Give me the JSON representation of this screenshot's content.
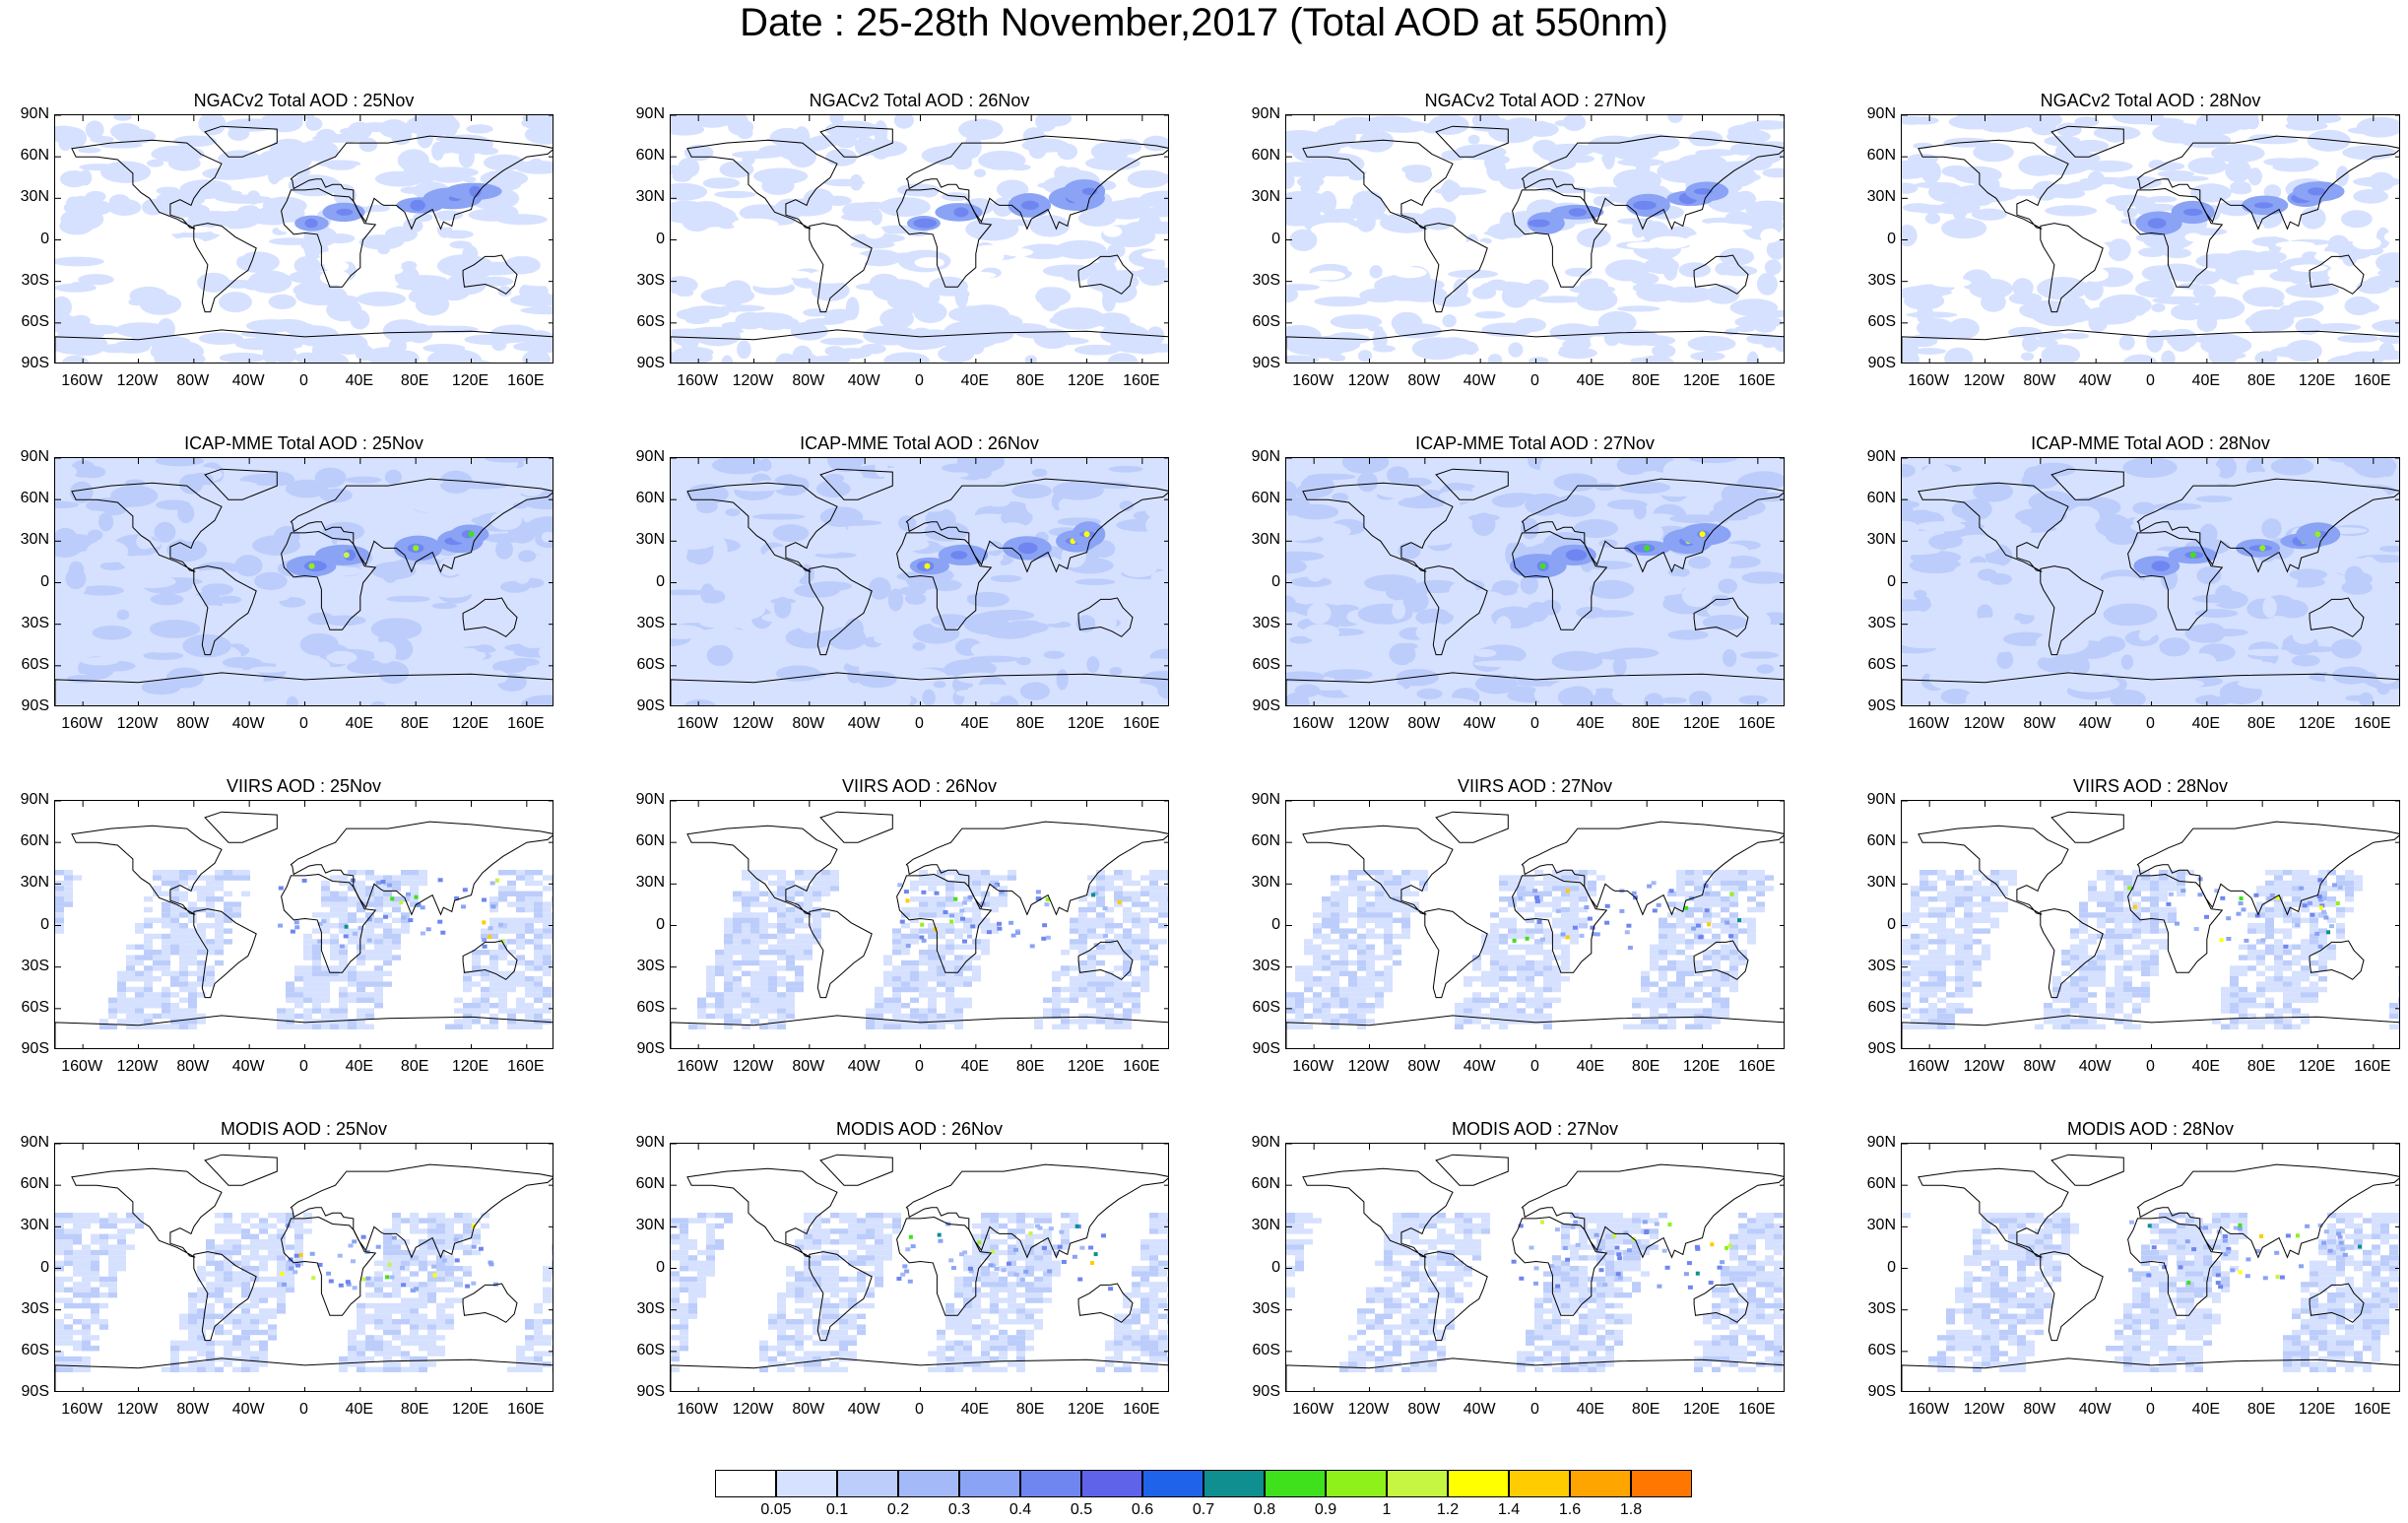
{
  "title": "Date : 25-28th November,2017 (Total AOD at 550nm)",
  "panels": [
    {
      "title": "NGACv2 Total AOD : 25Nov",
      "product": "NGACv2",
      "day": "25Nov"
    },
    {
      "title": "NGACv2 Total AOD : 26Nov",
      "product": "NGACv2",
      "day": "26Nov"
    },
    {
      "title": "NGACv2 Total AOD : 27Nov",
      "product": "NGACv2",
      "day": "27Nov"
    },
    {
      "title": "NGACv2 Total AOD : 28Nov",
      "product": "NGACv2",
      "day": "28Nov"
    },
    {
      "title": "ICAP-MME Total AOD : 25Nov",
      "product": "ICAP-MME",
      "day": "25Nov"
    },
    {
      "title": "ICAP-MME Total AOD : 26Nov",
      "product": "ICAP-MME",
      "day": "26Nov"
    },
    {
      "title": "ICAP-MME Total AOD : 27Nov",
      "product": "ICAP-MME",
      "day": "27Nov"
    },
    {
      "title": "ICAP-MME Total AOD : 28Nov",
      "product": "ICAP-MME",
      "day": "28Nov"
    },
    {
      "title": "VIIRS AOD : 25Nov",
      "product": "VIIRS",
      "day": "25Nov"
    },
    {
      "title": "VIIRS AOD : 26Nov",
      "product": "VIIRS",
      "day": "26Nov"
    },
    {
      "title": "VIIRS AOD : 27Nov",
      "product": "VIIRS",
      "day": "27Nov"
    },
    {
      "title": "VIIRS AOD : 28Nov",
      "product": "VIIRS",
      "day": "28Nov"
    },
    {
      "title": "MODIS AOD : 25Nov",
      "product": "MODIS",
      "day": "25Nov"
    },
    {
      "title": "MODIS AOD : 26Nov",
      "product": "MODIS",
      "day": "26Nov"
    },
    {
      "title": "MODIS AOD : 27Nov",
      "product": "MODIS",
      "day": "27Nov"
    },
    {
      "title": "MODIS AOD : 28Nov",
      "product": "MODIS",
      "day": "28Nov"
    }
  ],
  "lat_ticks": [
    "90N",
    "60N",
    "30N",
    "0",
    "30S",
    "60S",
    "90S"
  ],
  "lon_ticks": [
    "160W",
    "120W",
    "80W",
    "40W",
    "0",
    "40E",
    "80E",
    "120E",
    "160E"
  ],
  "colorbar": {
    "labels": [
      "0.05",
      "0.1",
      "0.2",
      "0.3",
      "0.4",
      "0.5",
      "0.6",
      "0.7",
      "0.8",
      "0.9",
      "1",
      "1.2",
      "1.4",
      "1.6",
      "1.8"
    ],
    "colors": [
      "#ffffff",
      "#d6e1ff",
      "#bccdfb",
      "#a3b9f8",
      "#8aa3f5",
      "#6f86f0",
      "#5f63ea",
      "#1f63ea",
      "#0f8f8f",
      "#3ee11c",
      "#8ef21a",
      "#c6f542",
      "#ffff00",
      "#ffcc00",
      "#ffa500",
      "#ff7700",
      "#ff1a00"
    ]
  }
}
